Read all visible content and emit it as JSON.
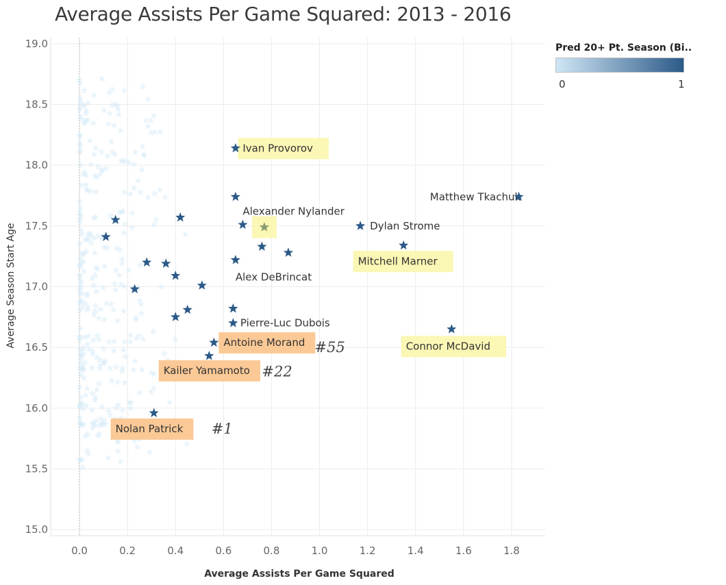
{
  "chart_data": {
    "type": "scatter",
    "title": "Average Assists Per Game Squared: 2013 - 2016",
    "xlabel": "Average Assists Per Game Squared",
    "ylabel": "Average Season Start Age",
    "xlim": [
      -0.12,
      1.94
    ],
    "ylim": [
      14.95,
      19.05
    ],
    "x_ticks": [
      "0.0",
      "0.2",
      "0.4",
      "0.6",
      "0.8",
      "1.0",
      "1.2",
      "1.4",
      "1.6",
      "1.8"
    ],
    "y_ticks": [
      "15.0",
      "15.5",
      "16.0",
      "16.5",
      "17.0",
      "17.5",
      "18.0",
      "18.5",
      "19.0"
    ],
    "grid": true,
    "marker": "star",
    "legend": {
      "title": "Pred 20+ Pt. Season (Bi..",
      "min_label": "0",
      "max_label": "1",
      "color_low": "#cfe6f5",
      "color_high": "#2c5a88",
      "placement": "top-right"
    },
    "highlighted_points": [
      {
        "x": 0.65,
        "y": 18.14
      },
      {
        "x": 0.65,
        "y": 17.74
      },
      {
        "x": 1.83,
        "y": 17.74
      },
      {
        "x": 0.15,
        "y": 17.55
      },
      {
        "x": 0.42,
        "y": 17.57
      },
      {
        "x": 0.68,
        "y": 17.51
      },
      {
        "x": 1.17,
        "y": 17.5
      },
      {
        "x": 0.11,
        "y": 17.41
      },
      {
        "x": 0.76,
        "y": 17.33
      },
      {
        "x": 1.35,
        "y": 17.34
      },
      {
        "x": 0.87,
        "y": 17.28
      },
      {
        "x": 0.65,
        "y": 17.22
      },
      {
        "x": 0.28,
        "y": 17.2
      },
      {
        "x": 0.36,
        "y": 17.19
      },
      {
        "x": 0.4,
        "y": 17.09
      },
      {
        "x": 0.51,
        "y": 17.01
      },
      {
        "x": 0.23,
        "y": 16.98
      },
      {
        "x": 0.64,
        "y": 16.82
      },
      {
        "x": 0.45,
        "y": 16.81
      },
      {
        "x": 0.4,
        "y": 16.75
      },
      {
        "x": 0.64,
        "y": 16.7
      },
      {
        "x": 1.55,
        "y": 16.65
      },
      {
        "x": 0.56,
        "y": 16.54
      },
      {
        "x": 0.54,
        "y": 16.43
      },
      {
        "x": 0.31,
        "y": 15.96
      }
    ],
    "muted_point": {
      "x": 0.77,
      "y": 17.49
    },
    "annotations": [
      {
        "text": "Ivan Provorov",
        "x": 0.68,
        "y": 18.14,
        "style": "yellow"
      },
      {
        "text": "Matthew Tkachuk",
        "x": 1.46,
        "y": 17.74,
        "style": "none"
      },
      {
        "text": "Alexander Nylander",
        "x": 0.68,
        "y": 17.62,
        "style": "none"
      },
      {
        "text": "Dylan Strome",
        "x": 1.21,
        "y": 17.5,
        "style": "none"
      },
      {
        "text": "Mitchell Marner",
        "x": 1.16,
        "y": 17.21,
        "style": "yellow"
      },
      {
        "text": "Alex DeBrincat",
        "x": 0.65,
        "y": 17.08,
        "style": "none"
      },
      {
        "text": "Pierre-Luc Dubois",
        "x": 0.67,
        "y": 16.7,
        "style": "none"
      },
      {
        "text": "Antoine Morand",
        "x": 0.6,
        "y": 16.54,
        "style": "orange"
      },
      {
        "text": "Connor McDavid",
        "x": 1.36,
        "y": 16.51,
        "style": "yellow"
      },
      {
        "text": "Kailer Yamamoto",
        "x": 0.35,
        "y": 16.31,
        "style": "orange"
      },
      {
        "text": "Nolan Patrick",
        "x": 0.15,
        "y": 15.83,
        "style": "orange"
      }
    ],
    "pick_labels": [
      {
        "text": "#55",
        "x": 0.98,
        "y": 16.5
      },
      {
        "text": "#22",
        "x": 0.76,
        "y": 16.3
      },
      {
        "text": "#1",
        "x": 0.55,
        "y": 15.83
      }
    ]
  }
}
